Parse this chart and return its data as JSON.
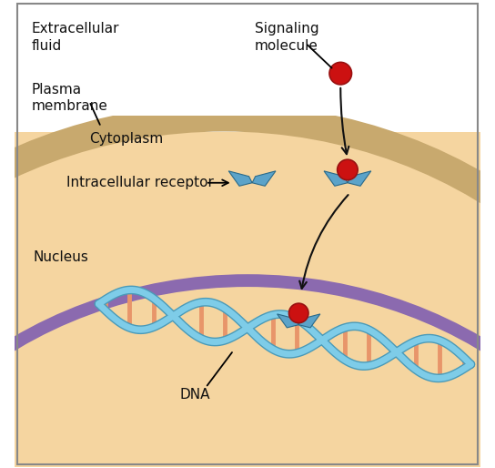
{
  "bg_color": "#ffffff",
  "cytoplasm_color": "#f5d5a0",
  "nucleus_color": "#d8cce8",
  "plasma_membrane_tan_color": "#c8a96e",
  "plasma_membrane_purple_color": "#8b6aaf",
  "signaling_molecule_color": "#cc1111",
  "signaling_molecule_edge": "#991111",
  "receptor_color": "#5ba3c9",
  "receptor_edge": "#2a6a8a",
  "dna_strand_color": "#7ecce8",
  "dna_strand_edge": "#4a9ab8",
  "dna_rung_color": "#e8956a",
  "arrow_color": "#111111",
  "label_color": "#111111",
  "border_color": "#888888",
  "labels": {
    "extracellular": "Extracellular\nfluid",
    "plasma_membrane": "Plasma\nmembrane",
    "cytoplasm": "Cytoplasm",
    "intracellular_receptor": "Intracellular receptor",
    "nucleus": "Nucleus",
    "dna": "DNA",
    "signaling_molecule": "Signaling\nmolecule"
  },
  "figsize": [
    5.44,
    5.14
  ],
  "dpi": 100
}
